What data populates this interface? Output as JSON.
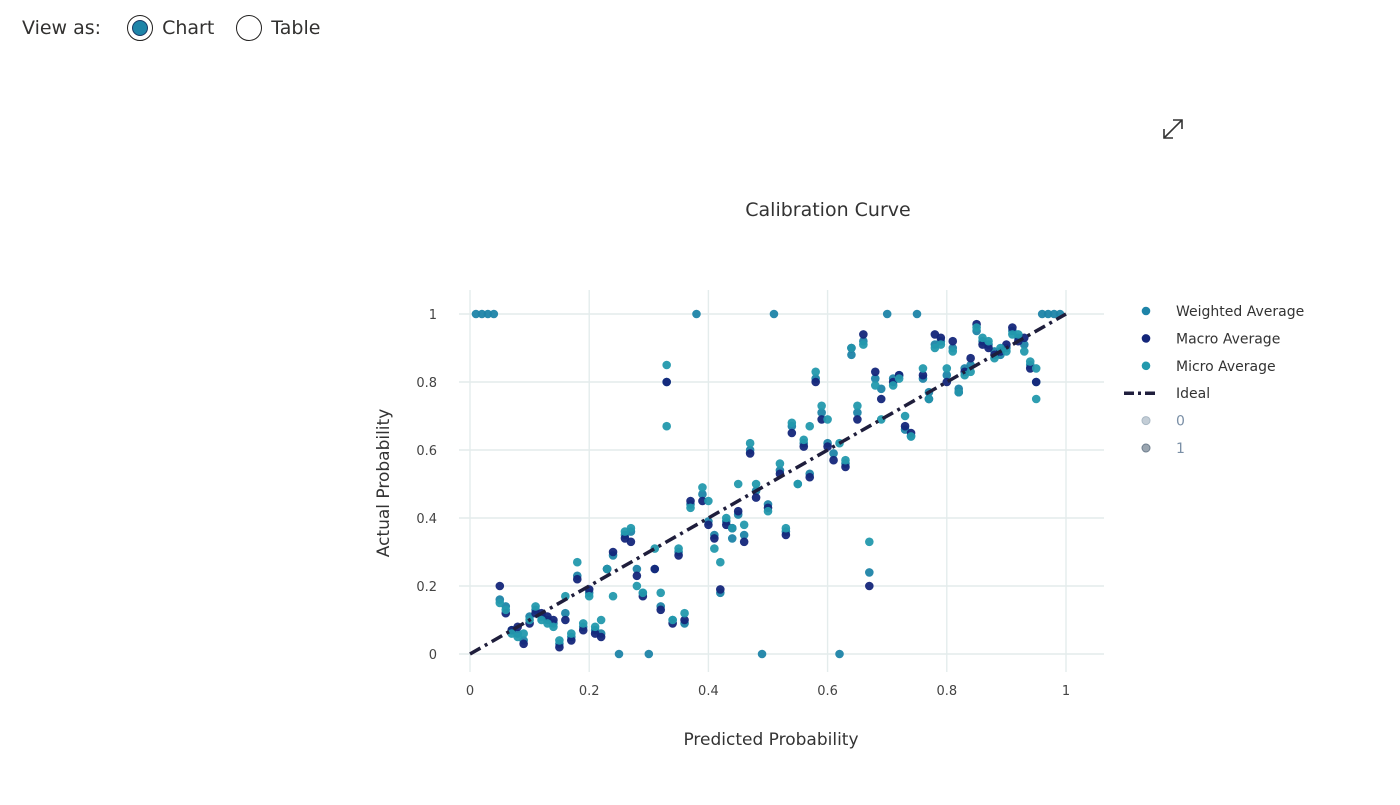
{
  "view_toggle": {
    "label": "View as:",
    "options": [
      {
        "label": "Chart",
        "selected": true
      },
      {
        "label": "Table",
        "selected": false
      }
    ]
  },
  "expand_icon": "expand-diagonal-arrows-icon",
  "colors": {
    "weighted": "#1e84a8",
    "macro": "#14267a",
    "micro": "#2399ad",
    "ideal": "#1f1e3c",
    "grid": "#e4ecec",
    "radio_selected": "#1e84a8"
  },
  "chart_data": {
    "type": "scatter",
    "title": "Calibration Curve",
    "xlabel": "Predicted Probability",
    "ylabel": "Actual Probability",
    "xlim": [
      0,
      1
    ],
    "ylim": [
      0,
      1
    ],
    "xticks": [
      "0",
      "0.2",
      "0.4",
      "0.6",
      "0.8",
      "1"
    ],
    "yticks": [
      "0",
      "0.2",
      "0.4",
      "0.6",
      "0.8",
      "1"
    ],
    "grid": true,
    "legend_position": "right",
    "legend": [
      {
        "name": "Weighted Average",
        "marker": "dot"
      },
      {
        "name": "Macro Average",
        "marker": "dot"
      },
      {
        "name": "Micro Average",
        "marker": "dot"
      },
      {
        "name": "Ideal",
        "marker": "dashdot-line"
      },
      {
        "name": "0",
        "marker": "faded-dot"
      },
      {
        "name": "1",
        "marker": "faded-dot"
      }
    ],
    "ideal_line": [
      [
        0,
        0
      ],
      [
        1,
        1
      ]
    ],
    "series": [
      {
        "name": "Weighted Average",
        "color": "#1e84a8",
        "points": [
          [
            0.01,
            1
          ],
          [
            0.02,
            1
          ],
          [
            0.03,
            1
          ],
          [
            0.04,
            1
          ],
          [
            0.05,
            0.16
          ],
          [
            0.06,
            0.14
          ],
          [
            0.07,
            0.07
          ],
          [
            0.08,
            0.06
          ],
          [
            0.09,
            0.04
          ],
          [
            0.1,
            0.11
          ],
          [
            0.11,
            0.13
          ],
          [
            0.12,
            0.11
          ],
          [
            0.13,
            0.1
          ],
          [
            0.14,
            0.09
          ],
          [
            0.15,
            0.03
          ],
          [
            0.16,
            0.12
          ],
          [
            0.17,
            0.05
          ],
          [
            0.18,
            0.23
          ],
          [
            0.19,
            0.08
          ],
          [
            0.2,
            0.18
          ],
          [
            0.21,
            0.07
          ],
          [
            0.22,
            0.06
          ],
          [
            0.23,
            0.25
          ],
          [
            0.24,
            0.29
          ],
          [
            0.25,
            0.0
          ],
          [
            0.26,
            0.35
          ],
          [
            0.27,
            0.36
          ],
          [
            0.28,
            0.25
          ],
          [
            0.29,
            0.18
          ],
          [
            0.3,
            0.0
          ],
          [
            0.31,
            0.25
          ],
          [
            0.32,
            0.14
          ],
          [
            0.33,
            0.8
          ],
          [
            0.34,
            0.1
          ],
          [
            0.35,
            0.3
          ],
          [
            0.36,
            0.09
          ],
          [
            0.37,
            0.44
          ],
          [
            0.38,
            1.0
          ],
          [
            0.39,
            0.47
          ],
          [
            0.4,
            0.39
          ],
          [
            0.41,
            0.35
          ],
          [
            0.42,
            0.18
          ],
          [
            0.43,
            0.39
          ],
          [
            0.44,
            0.34
          ],
          [
            0.45,
            0.41
          ],
          [
            0.46,
            0.35
          ],
          [
            0.47,
            0.6
          ],
          [
            0.48,
            0.48
          ],
          [
            0.49,
            0.0
          ],
          [
            0.5,
            0.44
          ],
          [
            0.51,
            1.0
          ],
          [
            0.52,
            0.54
          ],
          [
            0.53,
            0.36
          ],
          [
            0.54,
            0.67
          ],
          [
            0.55,
            0.5
          ],
          [
            0.56,
            0.62
          ],
          [
            0.57,
            0.53
          ],
          [
            0.58,
            0.81
          ],
          [
            0.59,
            0.71
          ],
          [
            0.6,
            0.62
          ],
          [
            0.61,
            0.59
          ],
          [
            0.62,
            0.0
          ],
          [
            0.63,
            0.56
          ],
          [
            0.64,
            0.88
          ],
          [
            0.65,
            0.71
          ],
          [
            0.66,
            0.92
          ],
          [
            0.67,
            0.24
          ],
          [
            0.68,
            0.81
          ],
          [
            0.69,
            0.78
          ],
          [
            0.7,
            1.0
          ],
          [
            0.71,
            0.81
          ],
          [
            0.72,
            0.82
          ],
          [
            0.73,
            0.66
          ],
          [
            0.74,
            0.64
          ],
          [
            0.75,
            1.0
          ],
          [
            0.76,
            0.81
          ],
          [
            0.77,
            0.77
          ],
          [
            0.78,
            0.91
          ],
          [
            0.79,
            0.92
          ],
          [
            0.8,
            0.82
          ],
          [
            0.81,
            0.9
          ],
          [
            0.82,
            0.78
          ],
          [
            0.83,
            0.84
          ],
          [
            0.84,
            0.85
          ],
          [
            0.85,
            0.95
          ],
          [
            0.86,
            0.92
          ],
          [
            0.87,
            0.91
          ],
          [
            0.88,
            0.89
          ],
          [
            0.89,
            0.88
          ],
          [
            0.9,
            0.9
          ],
          [
            0.91,
            0.95
          ],
          [
            0.92,
            0.93
          ],
          [
            0.93,
            0.91
          ],
          [
            0.94,
            0.85
          ],
          [
            0.95,
            0.8
          ],
          [
            0.96,
            1.0
          ],
          [
            0.97,
            1.0
          ],
          [
            0.98,
            1.0
          ],
          [
            0.99,
            1.0
          ]
        ]
      },
      {
        "name": "Macro Average",
        "color": "#14267a",
        "points": [
          [
            0.05,
            0.2
          ],
          [
            0.06,
            0.12
          ],
          [
            0.07,
            0.07
          ],
          [
            0.08,
            0.08
          ],
          [
            0.09,
            0.03
          ],
          [
            0.1,
            0.09
          ],
          [
            0.11,
            0.12
          ],
          [
            0.12,
            0.12
          ],
          [
            0.13,
            0.11
          ],
          [
            0.14,
            0.1
          ],
          [
            0.15,
            0.02
          ],
          [
            0.16,
            0.1
          ],
          [
            0.17,
            0.04
          ],
          [
            0.18,
            0.22
          ],
          [
            0.19,
            0.07
          ],
          [
            0.2,
            0.19
          ],
          [
            0.21,
            0.06
          ],
          [
            0.22,
            0.05
          ],
          [
            0.23,
            0.25
          ],
          [
            0.24,
            0.3
          ],
          [
            0.26,
            0.34
          ],
          [
            0.27,
            0.33
          ],
          [
            0.28,
            0.23
          ],
          [
            0.29,
            0.17
          ],
          [
            0.31,
            0.25
          ],
          [
            0.32,
            0.13
          ],
          [
            0.33,
            0.8
          ],
          [
            0.34,
            0.09
          ],
          [
            0.35,
            0.29
          ],
          [
            0.36,
            0.1
          ],
          [
            0.37,
            0.45
          ],
          [
            0.39,
            0.45
          ],
          [
            0.4,
            0.38
          ],
          [
            0.41,
            0.34
          ],
          [
            0.42,
            0.19
          ],
          [
            0.43,
            0.38
          ],
          [
            0.44,
            0.37
          ],
          [
            0.45,
            0.42
          ],
          [
            0.46,
            0.33
          ],
          [
            0.47,
            0.59
          ],
          [
            0.48,
            0.46
          ],
          [
            0.5,
            0.43
          ],
          [
            0.52,
            0.53
          ],
          [
            0.53,
            0.35
          ],
          [
            0.54,
            0.65
          ],
          [
            0.56,
            0.61
          ],
          [
            0.57,
            0.52
          ],
          [
            0.58,
            0.8
          ],
          [
            0.59,
            0.69
          ],
          [
            0.6,
            0.61
          ],
          [
            0.61,
            0.57
          ],
          [
            0.63,
            0.55
          ],
          [
            0.64,
            0.9
          ],
          [
            0.65,
            0.69
          ],
          [
            0.66,
            0.94
          ],
          [
            0.67,
            0.2
          ],
          [
            0.68,
            0.83
          ],
          [
            0.69,
            0.75
          ],
          [
            0.71,
            0.8
          ],
          [
            0.72,
            0.82
          ],
          [
            0.73,
            0.67
          ],
          [
            0.74,
            0.65
          ],
          [
            0.76,
            0.82
          ],
          [
            0.77,
            0.75
          ],
          [
            0.78,
            0.94
          ],
          [
            0.79,
            0.93
          ],
          [
            0.8,
            0.8
          ],
          [
            0.81,
            0.92
          ],
          [
            0.82,
            0.77
          ],
          [
            0.83,
            0.83
          ],
          [
            0.84,
            0.87
          ],
          [
            0.85,
            0.97
          ],
          [
            0.86,
            0.91
          ],
          [
            0.87,
            0.9
          ],
          [
            0.88,
            0.88
          ],
          [
            0.89,
            0.89
          ],
          [
            0.9,
            0.91
          ],
          [
            0.91,
            0.96
          ],
          [
            0.92,
            0.92
          ],
          [
            0.93,
            0.93
          ],
          [
            0.94,
            0.84
          ],
          [
            0.95,
            0.8
          ]
        ]
      },
      {
        "name": "Micro Average",
        "color": "#2399ad",
        "points": [
          [
            0.05,
            0.15
          ],
          [
            0.06,
            0.13
          ],
          [
            0.07,
            0.06
          ],
          [
            0.08,
            0.05
          ],
          [
            0.09,
            0.06
          ],
          [
            0.1,
            0.1
          ],
          [
            0.11,
            0.14
          ],
          [
            0.12,
            0.1
          ],
          [
            0.13,
            0.09
          ],
          [
            0.14,
            0.08
          ],
          [
            0.15,
            0.04
          ],
          [
            0.16,
            0.17
          ],
          [
            0.17,
            0.06
          ],
          [
            0.18,
            0.27
          ],
          [
            0.19,
            0.09
          ],
          [
            0.2,
            0.17
          ],
          [
            0.21,
            0.08
          ],
          [
            0.22,
            0.1
          ],
          [
            0.23,
            0.25
          ],
          [
            0.24,
            0.17
          ],
          [
            0.26,
            0.36
          ],
          [
            0.27,
            0.37
          ],
          [
            0.28,
            0.2
          ],
          [
            0.29,
            0.18
          ],
          [
            0.31,
            0.31
          ],
          [
            0.32,
            0.18
          ],
          [
            0.33,
            0.85
          ],
          [
            0.33,
            0.67
          ],
          [
            0.34,
            0.1
          ],
          [
            0.35,
            0.31
          ],
          [
            0.36,
            0.12
          ],
          [
            0.37,
            0.43
          ],
          [
            0.39,
            0.49
          ],
          [
            0.4,
            0.45
          ],
          [
            0.41,
            0.31
          ],
          [
            0.42,
            0.27
          ],
          [
            0.43,
            0.4
          ],
          [
            0.44,
            0.37
          ],
          [
            0.45,
            0.5
          ],
          [
            0.46,
            0.38
          ],
          [
            0.47,
            0.62
          ],
          [
            0.48,
            0.5
          ],
          [
            0.5,
            0.42
          ],
          [
            0.52,
            0.56
          ],
          [
            0.53,
            0.37
          ],
          [
            0.54,
            0.68
          ],
          [
            0.55,
            0.5
          ],
          [
            0.56,
            0.63
          ],
          [
            0.57,
            0.67
          ],
          [
            0.58,
            0.83
          ],
          [
            0.59,
            0.73
          ],
          [
            0.6,
            0.69
          ],
          [
            0.62,
            0.62
          ],
          [
            0.63,
            0.57
          ],
          [
            0.64,
            0.9
          ],
          [
            0.65,
            0.73
          ],
          [
            0.66,
            0.91
          ],
          [
            0.67,
            0.33
          ],
          [
            0.68,
            0.79
          ],
          [
            0.69,
            0.69
          ],
          [
            0.71,
            0.79
          ],
          [
            0.72,
            0.81
          ],
          [
            0.73,
            0.7
          ],
          [
            0.74,
            0.64
          ],
          [
            0.76,
            0.84
          ],
          [
            0.77,
            0.75
          ],
          [
            0.78,
            0.9
          ],
          [
            0.79,
            0.91
          ],
          [
            0.8,
            0.84
          ],
          [
            0.81,
            0.89
          ],
          [
            0.82,
            0.77
          ],
          [
            0.83,
            0.82
          ],
          [
            0.84,
            0.83
          ],
          [
            0.85,
            0.96
          ],
          [
            0.86,
            0.93
          ],
          [
            0.87,
            0.92
          ],
          [
            0.88,
            0.87
          ],
          [
            0.89,
            0.9
          ],
          [
            0.9,
            0.89
          ],
          [
            0.91,
            0.94
          ],
          [
            0.92,
            0.94
          ],
          [
            0.93,
            0.89
          ],
          [
            0.94,
            0.86
          ],
          [
            0.95,
            0.84
          ],
          [
            0.95,
            0.75
          ]
        ]
      }
    ]
  }
}
